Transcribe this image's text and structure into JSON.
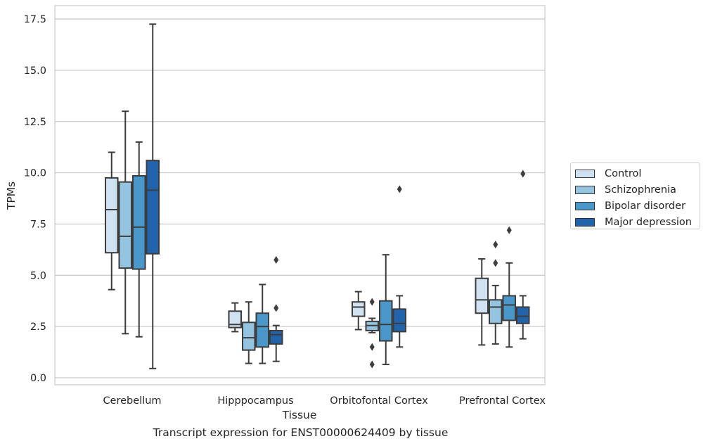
{
  "chart_data": {
    "type": "box",
    "caption": "Transcript expression for ENST00000624409 by tissue",
    "xlabel": "Tissue",
    "ylabel": "TPMs",
    "ylim": [
      -0.4,
      18.1
    ],
    "yticks": [
      "0.0",
      "2.5",
      "5.0",
      "7.5",
      "10.0",
      "12.5",
      "15.0",
      "17.5"
    ],
    "grid": "horizontal",
    "legend_position": "right",
    "categories": [
      "Cerebellum",
      "Hipppocampus",
      "Orbitofontal Cortex",
      "Prefrontal Cortex"
    ],
    "series": [
      {
        "name": "Control",
        "color": "#d0e1f2",
        "boxes": [
          {
            "whislo": 4.3,
            "q1": 6.1,
            "med": 8.2,
            "q3": 9.75,
            "whishi": 11.0,
            "fliers": []
          },
          {
            "whislo": 2.25,
            "q1": 2.45,
            "med": 2.6,
            "q3": 3.25,
            "whishi": 3.65,
            "fliers": []
          },
          {
            "whislo": 2.35,
            "q1": 3.0,
            "med": 3.45,
            "q3": 3.7,
            "whishi": 4.2,
            "fliers": []
          },
          {
            "whislo": 1.6,
            "q1": 3.15,
            "med": 3.8,
            "q3": 4.85,
            "whishi": 5.8,
            "fliers": []
          }
        ]
      },
      {
        "name": "Schizophrenia",
        "color": "#94c4df",
        "boxes": [
          {
            "whislo": 2.15,
            "q1": 5.35,
            "med": 6.9,
            "q3": 9.55,
            "whishi": 13.0,
            "fliers": []
          },
          {
            "whislo": 0.7,
            "q1": 1.35,
            "med": 1.95,
            "q3": 2.7,
            "whishi": 3.7,
            "fliers": []
          },
          {
            "whislo": 2.2,
            "q1": 2.3,
            "med": 2.55,
            "q3": 2.75,
            "whishi": 2.9,
            "fliers": [
              3.7,
              1.5,
              0.65
            ]
          },
          {
            "whislo": 1.65,
            "q1": 2.65,
            "med": 3.45,
            "q3": 3.8,
            "whishi": 4.5,
            "fliers": [
              6.5,
              5.6
            ]
          }
        ]
      },
      {
        "name": "Bipolar disorder",
        "color": "#4a98c9",
        "boxes": [
          {
            "whislo": 2.0,
            "q1": 5.3,
            "med": 7.35,
            "q3": 9.85,
            "whishi": 11.5,
            "fliers": []
          },
          {
            "whislo": 0.7,
            "q1": 1.5,
            "med": 2.5,
            "q3": 3.15,
            "whishi": 4.55,
            "fliers": []
          },
          {
            "whislo": 0.65,
            "q1": 1.8,
            "med": 2.6,
            "q3": 3.75,
            "whishi": 6.0,
            "fliers": []
          },
          {
            "whislo": 1.5,
            "q1": 2.8,
            "med": 3.55,
            "q3": 4.0,
            "whishi": 5.6,
            "fliers": [
              7.2
            ]
          }
        ]
      },
      {
        "name": "Major depression",
        "color": "#2164ab",
        "boxes": [
          {
            "whislo": 0.45,
            "q1": 6.05,
            "med": 9.15,
            "q3": 10.6,
            "whishi": 17.25,
            "fliers": []
          },
          {
            "whislo": 0.8,
            "q1": 1.65,
            "med": 2.1,
            "q3": 2.3,
            "whishi": 2.55,
            "fliers": [
              5.75,
              3.4
            ]
          },
          {
            "whislo": 1.5,
            "q1": 2.25,
            "med": 2.65,
            "q3": 3.35,
            "whishi": 4.0,
            "fliers": [
              9.2
            ]
          },
          {
            "whislo": 1.9,
            "q1": 2.65,
            "med": 3.0,
            "q3": 3.45,
            "whishi": 4.0,
            "fliers": [
              9.95
            ]
          }
        ]
      }
    ]
  }
}
